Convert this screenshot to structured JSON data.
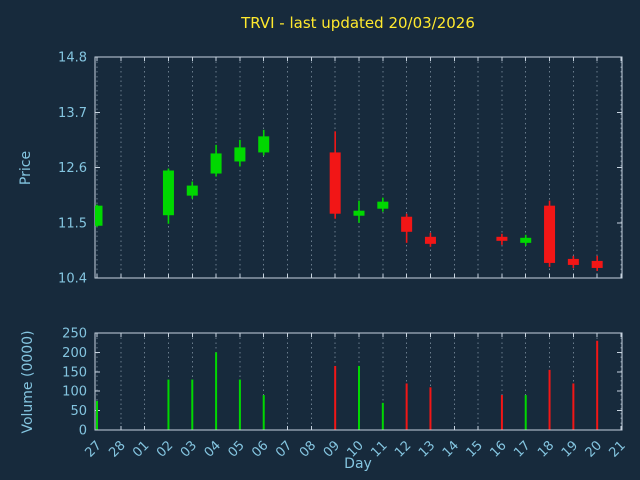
{
  "window": {
    "title": "TRVI - last updated 20/03/2026"
  },
  "colors": {
    "bg": "#172a3c",
    "title": "#ffe92e",
    "axis": "#84c5e0",
    "grid": "#aebfd0",
    "border": "#c7d3df",
    "up": "#00d800",
    "down": "#f21616"
  },
  "chart_data": {
    "type": "candlestick",
    "title": "TRVI - last updated 20/03/2026",
    "xlabel": "Day",
    "grid": "vertical-dashed",
    "legend": "none",
    "price_axis": {
      "label": "Price",
      "min": 10.4,
      "max": 14.8,
      "ticks": [
        10.4,
        11.5,
        12.6,
        13.7,
        14.8
      ]
    },
    "volume_axis": {
      "label": "Volume (0000)",
      "min": 0,
      "max": 250,
      "ticks": [
        0,
        50,
        100,
        150,
        200,
        250
      ]
    },
    "days": [
      "27",
      "28",
      "01",
      "02",
      "03",
      "04",
      "05",
      "06",
      "07",
      "08",
      "09",
      "10",
      "11",
      "12",
      "13",
      "14",
      "15",
      "16",
      "17",
      "18",
      "19",
      "20",
      "21"
    ],
    "candles": [
      {
        "day": "27",
        "open": 11.44,
        "high": 11.86,
        "low": 11.42,
        "close": 11.84,
        "volume": 75
      },
      {
        "day": "02",
        "open": 11.65,
        "high": 12.58,
        "low": 11.48,
        "close": 12.54,
        "volume": 130
      },
      {
        "day": "03",
        "open": 12.04,
        "high": 12.32,
        "low": 11.98,
        "close": 12.24,
        "volume": 130
      },
      {
        "day": "04",
        "open": 12.48,
        "high": 13.05,
        "low": 12.42,
        "close": 12.88,
        "volume": 200
      },
      {
        "day": "05",
        "open": 12.72,
        "high": 13.15,
        "low": 12.62,
        "close": 13.0,
        "volume": 130
      },
      {
        "day": "06",
        "open": 12.9,
        "high": 13.35,
        "low": 12.84,
        "close": 13.22,
        "volume": 90
      },
      {
        "day": "09",
        "open": 12.9,
        "high": 13.32,
        "low": 11.58,
        "close": 11.68,
        "volume": 165
      },
      {
        "day": "10",
        "open": 11.64,
        "high": 11.94,
        "low": 11.5,
        "close": 11.74,
        "volume": 165
      },
      {
        "day": "11",
        "open": 11.78,
        "high": 12.0,
        "low": 11.72,
        "close": 11.92,
        "volume": 70
      },
      {
        "day": "12",
        "open": 11.62,
        "high": 11.68,
        "low": 11.1,
        "close": 11.32,
        "volume": 120
      },
      {
        "day": "13",
        "open": 11.22,
        "high": 11.3,
        "low": 11.02,
        "close": 11.08,
        "volume": 110
      },
      {
        "day": "16",
        "open": 11.22,
        "high": 11.28,
        "low": 11.06,
        "close": 11.14,
        "volume": 90
      },
      {
        "day": "17",
        "open": 11.1,
        "high": 11.26,
        "low": 11.04,
        "close": 11.2,
        "volume": 90
      },
      {
        "day": "18",
        "open": 11.84,
        "high": 11.94,
        "low": 10.62,
        "close": 10.7,
        "volume": 155
      },
      {
        "day": "19",
        "open": 10.78,
        "high": 10.84,
        "low": 10.6,
        "close": 10.66,
        "volume": 120
      },
      {
        "day": "20",
        "open": 10.74,
        "high": 10.84,
        "low": 10.54,
        "close": 10.6,
        "volume": 230
      }
    ]
  }
}
